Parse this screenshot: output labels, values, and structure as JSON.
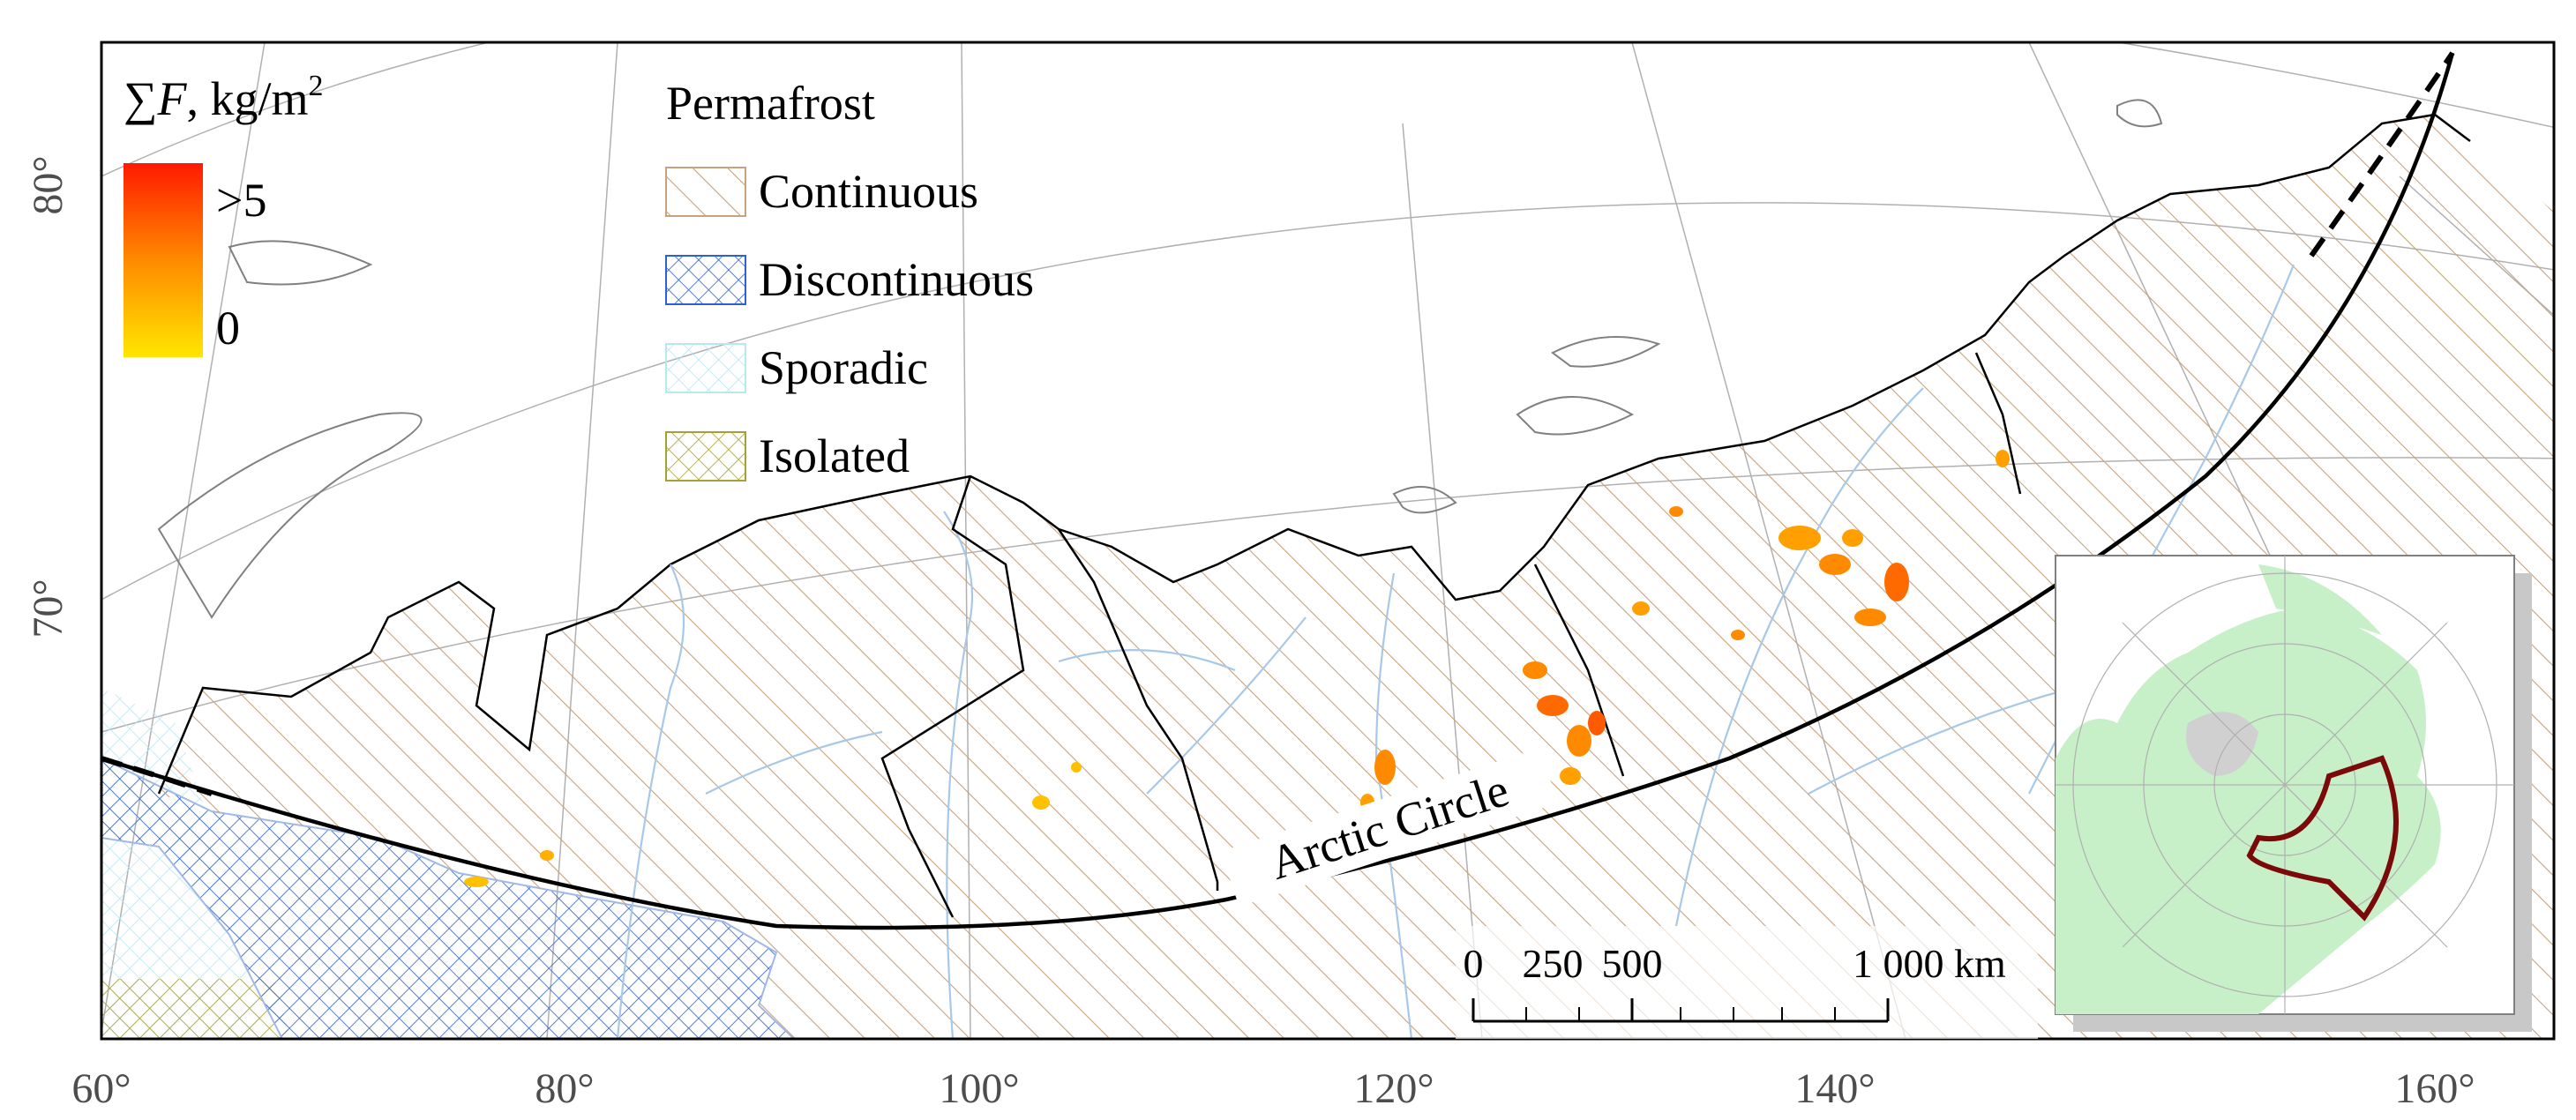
{
  "axes": {
    "lon_ticks": [
      "60°",
      "80°",
      "100°",
      "120°",
      "140°",
      "160°"
    ],
    "lat_ticks": [
      "80°",
      "70°"
    ]
  },
  "colorbar": {
    "title_symbol": "∑F",
    "title_units": ", kg/m",
    "title_sup": "2",
    "max_label": ">5",
    "min_label": "0",
    "colors": [
      "#ff1a00",
      "#ff8a00",
      "#ffe600"
    ]
  },
  "legend": {
    "title": "Permafrost",
    "items": [
      {
        "label": "Continuous",
        "pattern": "diagonal-hatch",
        "color": "#c8a27c"
      },
      {
        "label": "Discontinuous",
        "pattern": "cross-hatch",
        "color": "#2f5fd0"
      },
      {
        "label": "Sporadic",
        "pattern": "cross-hatch",
        "color": "#b8e6f2"
      },
      {
        "label": "Isolated",
        "pattern": "cross-hatch",
        "color": "#a8a030"
      }
    ]
  },
  "annotations": {
    "arctic_circle": "Arctic Circle"
  },
  "scale_bar": {
    "labels": [
      "0",
      "250",
      "500",
      "1 000 km"
    ]
  },
  "inset": {
    "land_color": "#c8f0c8",
    "region_color": "#7a0a0a"
  },
  "colors": {
    "rivers": "#a8c8e8",
    "boundaries": "#000000",
    "coastline": "#808080",
    "graticule": "#b0b0b0"
  }
}
